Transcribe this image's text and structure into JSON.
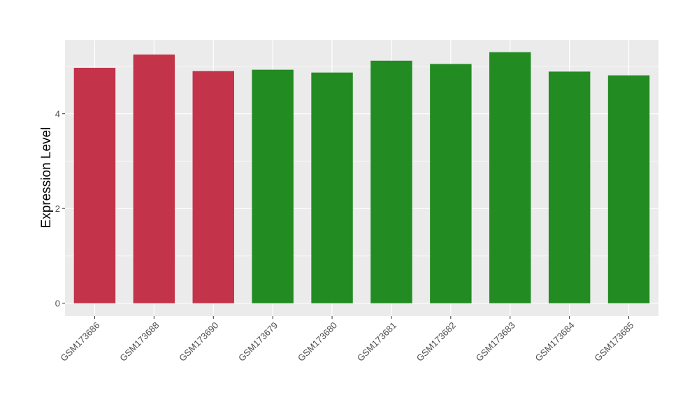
{
  "chart_data": {
    "type": "bar",
    "title": "",
    "xlabel": "",
    "ylabel": "Expression Level",
    "categories": [
      "GSM173686",
      "GSM173688",
      "GSM173690",
      "GSM173679",
      "GSM173680",
      "GSM173681",
      "GSM173682",
      "GSM173683",
      "GSM173684",
      "GSM173685"
    ],
    "values": [
      4.97,
      5.25,
      4.9,
      4.93,
      4.87,
      5.12,
      5.05,
      5.3,
      4.89,
      4.81
    ],
    "colors": [
      "#c3334a",
      "#c3334a",
      "#c3334a",
      "#228b22",
      "#228b22",
      "#228b22",
      "#228b22",
      "#228b22",
      "#228b22",
      "#228b22"
    ],
    "ylim": [
      -0.27,
      5.56
    ],
    "yticks": [
      0,
      2,
      4
    ],
    "grid": true,
    "panel_background": "#ebebeb",
    "legend": "none"
  }
}
